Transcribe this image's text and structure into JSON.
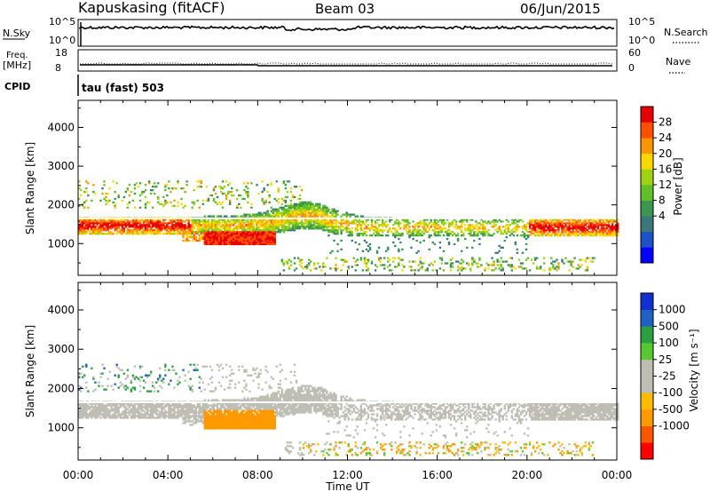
{
  "header": {
    "station": "Kapuskasing (fitACF)",
    "beam": "Beam 03",
    "date": "06/Jun/2015"
  },
  "summary_panels": {
    "nsky": {
      "label": "N.Sky",
      "ticks_left": [
        "10^5",
        "10^0"
      ],
      "ticks_right": [
        "10^5",
        "10^0"
      ],
      "right_label": "N.Search"
    },
    "freq": {
      "label_line1": "Freq.",
      "label_line2": "[MHz]",
      "ticks_left": [
        "18",
        "8"
      ],
      "ticks_right": [
        "60",
        "0"
      ],
      "right_label": "Nave"
    },
    "cpid": {
      "label": "CPID",
      "text": "tau (fast) 503"
    }
  },
  "x_axis": {
    "title": "Time UT",
    "ticks": [
      "00:00",
      "04:00",
      "08:00",
      "12:00",
      "16:00",
      "20:00",
      "00:00"
    ]
  },
  "chart_data": [
    {
      "type": "heatmap",
      "ylabel": "Slant Range [km]",
      "yticks": [
        1000,
        2000,
        3000,
        4000
      ],
      "ylim": [
        180,
        4700
      ],
      "xlim_hours": [
        0,
        24
      ],
      "colorbar": {
        "label": "Power [dB]",
        "ticks": [
          "28",
          "24",
          "20",
          "16",
          "12",
          "8",
          "4"
        ],
        "colors": [
          "#0000ff",
          "#1e50c8",
          "#3c7878",
          "#3c9650",
          "#64be28",
          "#a0d214",
          "#ffd700",
          "#ff9600",
          "#ff5000",
          "#e60000"
        ],
        "range": [
          0,
          30
        ]
      }
    },
    {
      "type": "heatmap",
      "ylabel": "Slant Range [km]",
      "yticks": [
        1000,
        2000,
        3000,
        4000
      ],
      "ylim": [
        180,
        4700
      ],
      "xlim_hours": [
        0,
        24
      ],
      "colorbar": {
        "label": "Velocity [m s⁻¹]",
        "ticks": [
          "1000",
          "500",
          "100",
          "25",
          "-25",
          "-100",
          "-500",
          "-1000"
        ],
        "colors": [
          "#ff0000",
          "#ff5500",
          "#ff9900",
          "#ffbb00",
          "#bebeb4",
          "#bebeb4",
          "#58c830",
          "#2aa040",
          "#2060c0",
          "#1030d0"
        ],
        "ground_scatter": "#bebeb4"
      }
    }
  ]
}
